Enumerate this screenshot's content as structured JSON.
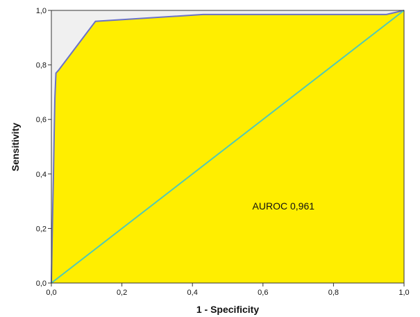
{
  "chart_data": {
    "type": "area",
    "xlabel": "1 - Specificity",
    "ylabel": "Sensitivity",
    "xlim": [
      0,
      1
    ],
    "ylim": [
      0,
      1
    ],
    "xticks": [
      "0,0",
      "0,2",
      "0,4",
      "0,6",
      "0,8",
      "1,0"
    ],
    "yticks": [
      "0,0",
      "0,2",
      "0,4",
      "0,6",
      "0,8",
      "1,0"
    ],
    "grid": false,
    "series": [
      {
        "x": [
          0,
          0.002,
          0.004,
          0.006,
          0.008,
          0.01,
          0.013,
          0.02,
          0.125,
          0.43,
          0.95,
          1.0
        ],
        "y": [
          0,
          0.15,
          0.28,
          0.4,
          0.55,
          0.68,
          0.77,
          0.78,
          0.96,
          0.985,
          0.985,
          1.0
        ]
      },
      {
        "x": [
          0,
          1
        ],
        "y": [
          0,
          1
        ]
      }
    ],
    "annotations": [
      {
        "text": "AUROC 0,961",
        "x": 0.57,
        "y": 0.27
      }
    ],
    "colors": {
      "fill": "#ffee00",
      "background": "#f0f0f0",
      "roc_line": "#6a72c8",
      "diagonal": "#4fc9b8",
      "axis": "#333333"
    }
  }
}
